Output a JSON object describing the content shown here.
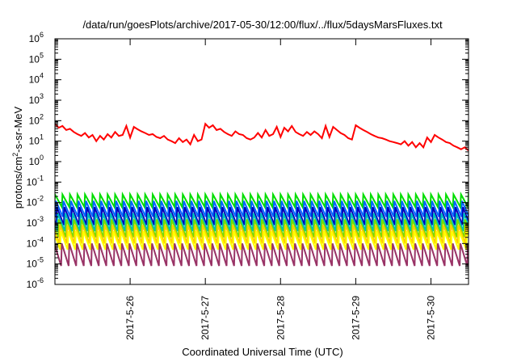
{
  "chart_data": {
    "type": "line",
    "title": "/data/run/goesPlots/archive/2017-05-30/12:00/flux/../flux/5daysMarsFluxes.txt",
    "xlabel": "Coordinated Universal Time (UTC)",
    "ylabel": "protons/cm2-s-sr-MeV",
    "yscale": "log",
    "ylim_exponents": [
      -6,
      6
    ],
    "y_tick_exponents": [
      -6,
      -5,
      -4,
      -3,
      -2,
      -1,
      0,
      1,
      2,
      3,
      4,
      5,
      6
    ],
    "y_tick_base": "10",
    "xlim_days": [
      0,
      5.5
    ],
    "x_ticks": [
      {
        "label": "2017-5-26",
        "pos": 1
      },
      {
        "label": "2017-5-27",
        "pos": 2
      },
      {
        "label": "2017-5-28",
        "pos": 3
      },
      {
        "label": "2017-5-29",
        "pos": 4
      },
      {
        "label": "2017-5-30",
        "pos": 5
      }
    ],
    "grid": false,
    "legend": "none",
    "series": [
      {
        "color": "#ff0000",
        "x": [
          0.0,
          0.05,
          0.1,
          0.15,
          0.2,
          0.25,
          0.3,
          0.35,
          0.4,
          0.45,
          0.5,
          0.55,
          0.6,
          0.65,
          0.7,
          0.75,
          0.8,
          0.85,
          0.9,
          0.95,
          1.0,
          1.05,
          1.1,
          1.15,
          1.2,
          1.25,
          1.3,
          1.35,
          1.4,
          1.45,
          1.5,
          1.55,
          1.6,
          1.65,
          1.7,
          1.75,
          1.8,
          1.85,
          1.9,
          1.95,
          2.0,
          2.05,
          2.1,
          2.15,
          2.2,
          2.25,
          2.3,
          2.35,
          2.4,
          2.45,
          2.5,
          2.55,
          2.6,
          2.65,
          2.7,
          2.75,
          2.8,
          2.85,
          2.9,
          2.95,
          3.0,
          3.05,
          3.1,
          3.15,
          3.2,
          3.25,
          3.3,
          3.35,
          3.4,
          3.45,
          3.5,
          3.55,
          3.6,
          3.65,
          3.7,
          3.75,
          3.8,
          3.85,
          3.9,
          3.95,
          4.0,
          4.05,
          4.1,
          4.15,
          4.2,
          4.25,
          4.3,
          4.35,
          4.4,
          4.45,
          4.5,
          4.55,
          4.6,
          4.65,
          4.7,
          4.75,
          4.8,
          4.85,
          4.9,
          4.95,
          5.0,
          5.05,
          5.1,
          5.15,
          5.2,
          5.25,
          5.3,
          5.35,
          5.4,
          5.45,
          5.5
        ],
        "y": [
          70,
          45,
          55,
          35,
          40,
          28,
          22,
          18,
          25,
          15,
          20,
          10,
          18,
          12,
          22,
          15,
          28,
          18,
          20,
          55,
          15,
          50,
          38,
          30,
          25,
          20,
          22,
          16,
          14,
          18,
          12,
          10,
          8,
          14,
          9,
          12,
          7,
          20,
          10,
          12,
          70,
          45,
          60,
          35,
          40,
          28,
          22,
          18,
          30,
          22,
          20,
          14,
          12,
          15,
          25,
          15,
          35,
          18,
          22,
          50,
          16,
          45,
          30,
          55,
          28,
          22,
          18,
          28,
          20,
          30,
          22,
          14,
          55,
          16,
          50,
          35,
          25,
          20,
          14,
          12,
          60,
          45,
          35,
          28,
          22,
          18,
          15,
          14,
          12,
          10,
          9,
          8,
          7,
          10,
          6,
          9,
          5,
          8,
          5,
          15,
          9,
          20,
          15,
          12,
          9,
          8,
          6,
          5,
          4,
          5,
          3.5
        ]
      },
      {
        "color": "#00dd00",
        "low": 0.006,
        "high": 0.025
      },
      {
        "color": "#0066ff",
        "low": 0.002,
        "high": 0.012
      },
      {
        "color": "#0000bb",
        "low": 0.0008,
        "high": 0.006
      },
      {
        "color": "#00bbbb",
        "low": 0.0004,
        "high": 0.003
      },
      {
        "color": "#77dd00",
        "low": 0.0002,
        "high": 0.0015
      },
      {
        "color": "#ffcc00",
        "low": 0.0001,
        "high": 0.0008
      },
      {
        "color": "#ffff00",
        "low": 5e-05,
        "high": 0.0004
      },
      {
        "color": "#993366",
        "low": 8e-06,
        "high": 0.0001
      }
    ],
    "oscillation_period_days": 0.1
  }
}
